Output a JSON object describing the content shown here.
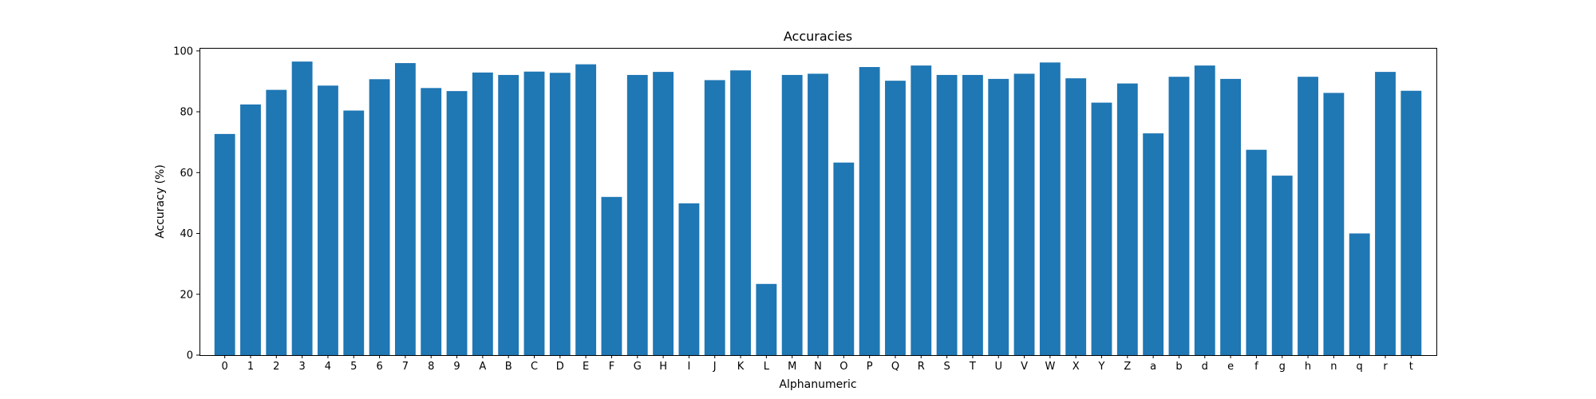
{
  "chart_data": {
    "type": "bar",
    "title": "Accuracies",
    "xlabel": "Alphanumeric",
    "ylabel": "Accuracy (%)",
    "ylim": [
      0,
      101
    ],
    "yticks": [
      0,
      20,
      40,
      60,
      80,
      100
    ],
    "grid": false,
    "bar_color": "#1f77b4",
    "categories": [
      "0",
      "1",
      "2",
      "3",
      "4",
      "5",
      "6",
      "7",
      "8",
      "9",
      "A",
      "B",
      "C",
      "D",
      "E",
      "F",
      "G",
      "H",
      "I",
      "J",
      "K",
      "L",
      "M",
      "N",
      "O",
      "P",
      "Q",
      "R",
      "S",
      "T",
      "U",
      "V",
      "W",
      "X",
      "Y",
      "Z",
      "a",
      "b",
      "d",
      "e",
      "f",
      "g",
      "h",
      "n",
      "q",
      "r",
      "t"
    ],
    "values": [
      72.7,
      82.4,
      87.2,
      96.5,
      88.6,
      80.4,
      90.7,
      96.0,
      87.8,
      86.8,
      92.9,
      92.1,
      93.2,
      92.8,
      95.6,
      52.0,
      92.1,
      93.1,
      49.9,
      90.4,
      93.6,
      23.4,
      92.1,
      92.5,
      63.3,
      94.7,
      90.2,
      95.2,
      92.1,
      92.1,
      90.8,
      92.5,
      96.2,
      91.0,
      83.0,
      89.3,
      72.9,
      91.5,
      95.2,
      90.8,
      67.5,
      59.0,
      91.5,
      86.2,
      40.0,
      93.1,
      86.9
    ]
  }
}
